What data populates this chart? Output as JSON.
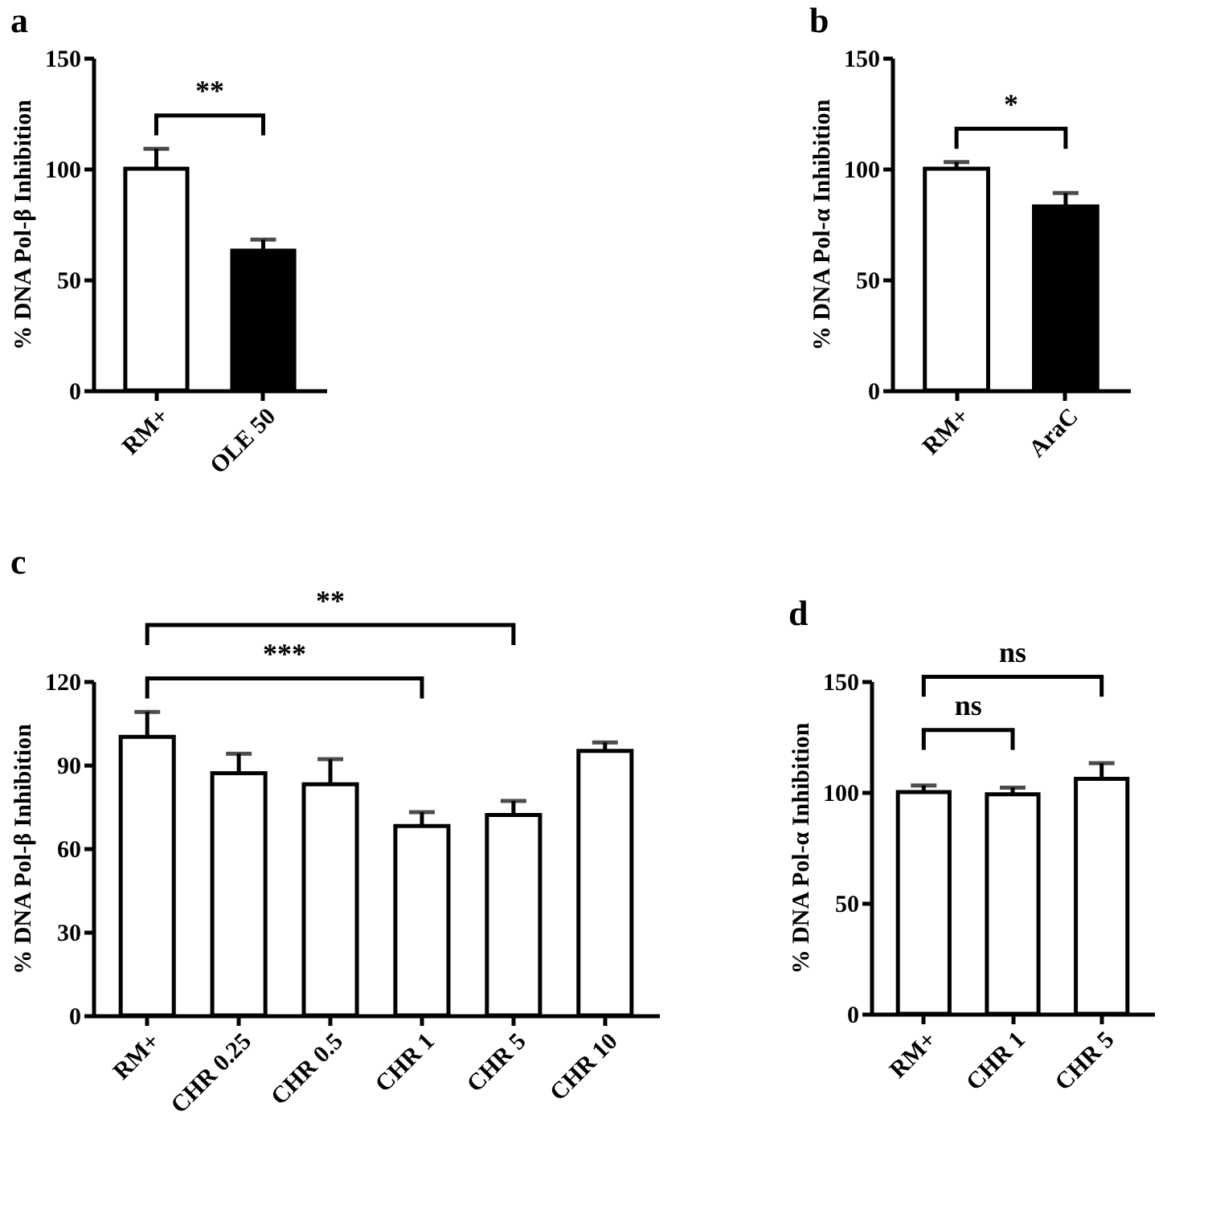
{
  "chart_data": [
    {
      "type": "bar",
      "title": "a",
      "ylabel": "% DNA Pol-β Inhibition",
      "categories": [
        "RM+",
        "OLE 50"
      ],
      "values": [
        100,
        63
      ],
      "errors": [
        [
          100,
          109
        ],
        [
          63,
          68
        ]
      ],
      "colors": [
        "#ffffff",
        "#000000"
      ],
      "ylim": [
        0,
        150
      ],
      "yticks": [
        0,
        50,
        100,
        150
      ],
      "grid": false,
      "legend": false,
      "annotations": [
        "**"
      ]
    },
    {
      "type": "bar",
      "title": "b",
      "ylabel": "% DNA Pol-α Inhibition",
      "categories": [
        "RM+",
        "AraC"
      ],
      "values": [
        100,
        83
      ],
      "errors": [
        [
          100,
          103
        ],
        [
          83,
          89
        ]
      ],
      "colors": [
        "#ffffff",
        "#000000"
      ],
      "ylim": [
        0,
        150
      ],
      "yticks": [
        0,
        50,
        100,
        150
      ],
      "grid": false,
      "legend": false,
      "annotations": [
        "*"
      ]
    },
    {
      "type": "bar",
      "title": "c",
      "ylabel": "% DNA Pol-β Inhibition",
      "categories": [
        "RM+",
        "CHR 0.25",
        "CHR 0.5",
        "CHR 1",
        "CHR 5",
        "CHR 10"
      ],
      "values": [
        100,
        87,
        83,
        68,
        72,
        95
      ],
      "errors": [
        [
          100,
          109
        ],
        [
          87,
          94
        ],
        [
          83,
          92
        ],
        [
          68,
          73
        ],
        [
          72,
          77
        ],
        [
          95,
          98
        ]
      ],
      "colors": [
        "#ffffff",
        "#ffffff",
        "#ffffff",
        "#ffffff",
        "#ffffff",
        "#ffffff"
      ],
      "ylim": [
        0,
        120
      ],
      "yticks": [
        0,
        30,
        60,
        90,
        120
      ],
      "grid": false,
      "legend": false,
      "annotations": [
        "***",
        "**"
      ]
    },
    {
      "type": "bar",
      "title": "d",
      "ylabel": "% DNA Pol-α Inhibition",
      "categories": [
        "RM+",
        "CHR 1",
        "CHR 5"
      ],
      "values": [
        100,
        99,
        106
      ],
      "errors": [
        [
          100,
          103
        ],
        [
          99,
          102
        ],
        [
          106,
          113
        ]
      ],
      "colors": [
        "#ffffff",
        "#ffffff",
        "#ffffff"
      ],
      "ylim": [
        0,
        150
      ],
      "yticks": [
        0,
        50,
        100,
        150
      ],
      "grid": false,
      "legend": false,
      "annotations": [
        "ns",
        "ns"
      ]
    }
  ]
}
